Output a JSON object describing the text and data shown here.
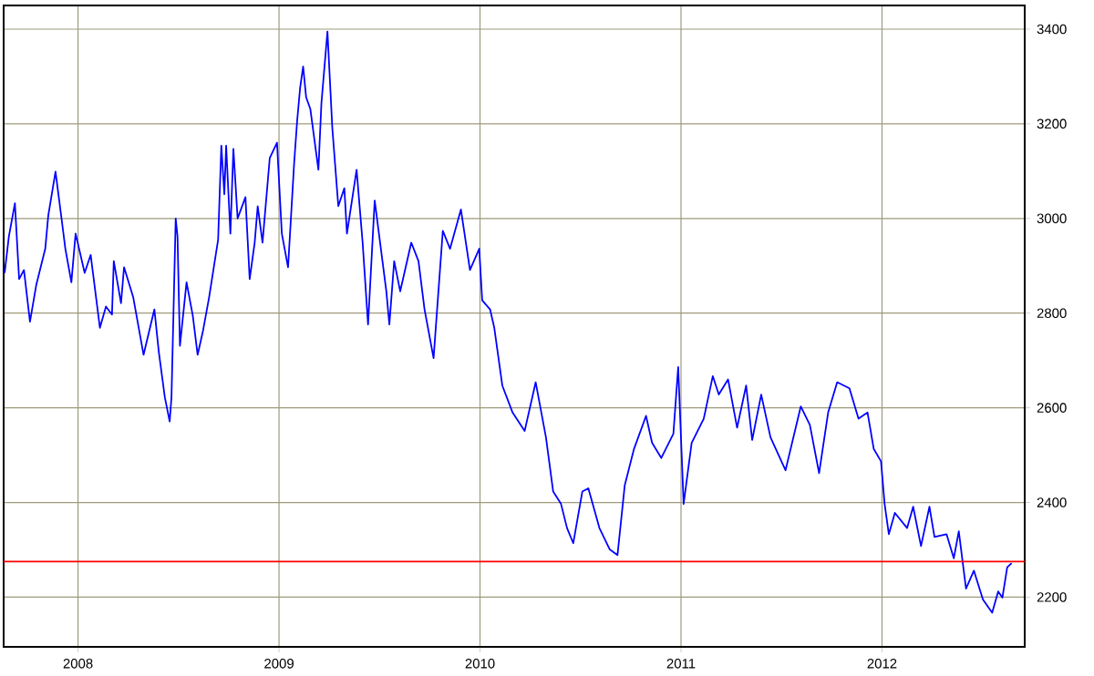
{
  "chart_data": {
    "type": "line",
    "x": [
      2007.635,
      2007.656,
      2007.686,
      2007.707,
      2007.731,
      2007.761,
      2007.792,
      2007.837,
      2007.852,
      2007.888,
      2007.918,
      2007.937,
      2007.967,
      2007.988,
      2008.033,
      2008.063,
      2008.109,
      2008.139,
      2008.169,
      2008.178,
      2008.214,
      2008.229,
      2008.275,
      2008.326,
      2008.38,
      2008.402,
      2008.432,
      2008.456,
      2008.465,
      2008.486,
      2008.495,
      2008.507,
      2008.54,
      2008.571,
      2008.595,
      2008.622,
      2008.652,
      2008.697,
      2008.713,
      2008.728,
      2008.737,
      2008.758,
      2008.773,
      2008.794,
      2008.833,
      2008.854,
      2008.879,
      2008.894,
      2008.918,
      2008.954,
      2008.99,
      2009.014,
      2009.045,
      2009.075,
      2009.09,
      2009.105,
      2009.12,
      2009.135,
      2009.156,
      2009.196,
      2009.211,
      2009.241,
      2009.265,
      2009.295,
      2009.325,
      2009.338,
      2009.386,
      2009.416,
      2009.443,
      2009.476,
      2009.534,
      2009.549,
      2009.573,
      2009.603,
      2009.658,
      2009.694,
      2009.724,
      2009.769,
      2009.815,
      2009.851,
      2009.905,
      2009.95,
      2009.996,
      2010.011,
      2010.05,
      2010.071,
      2010.111,
      2010.162,
      2010.222,
      2010.277,
      2010.328,
      2010.364,
      2010.403,
      2010.433,
      2010.464,
      2010.509,
      2010.539,
      2010.594,
      2010.645,
      2010.684,
      2010.72,
      2010.766,
      2010.826,
      2010.856,
      2010.902,
      2010.962,
      2010.986,
      2011.013,
      2011.053,
      2011.113,
      2011.158,
      2011.188,
      2011.234,
      2011.279,
      2011.324,
      2011.354,
      2011.399,
      2011.445,
      2011.52,
      2011.596,
      2011.641,
      2011.687,
      2011.732,
      2011.777,
      2011.838,
      2011.883,
      2011.928,
      2011.959,
      2011.995,
      2012.013,
      2012.034,
      2012.064,
      2012.125,
      2012.155,
      2012.194,
      2012.236,
      2012.261,
      2012.321,
      2012.357,
      2012.382,
      2012.418,
      2012.457,
      2012.502,
      2012.548,
      2012.578,
      2012.599,
      2012.623,
      2012.645
    ],
    "series": [
      {
        "color": "#0000ff",
        "values": [
          2885,
          2962,
          3032,
          2872,
          2891,
          2782,
          2859,
          2936,
          3006,
          3099,
          3000,
          2936,
          2865,
          2968,
          2885,
          2923,
          2769,
          2814,
          2797,
          2910,
          2821,
          2897,
          2833,
          2712,
          2808,
          2718,
          2622,
          2571,
          2622,
          3000,
          2962,
          2731,
          2865,
          2795,
          2712,
          2763,
          2833,
          2955,
          3154,
          3051,
          3154,
          2968,
          3147,
          3000,
          3045,
          2872,
          2949,
          3026,
          2949,
          3128,
          3160,
          2968,
          2897,
          3115,
          3205,
          3276,
          3321,
          3256,
          3231,
          3103,
          3244,
          3395,
          3192,
          3026,
          3064,
          2968,
          3103,
          2949,
          2776,
          3038,
          2846,
          2776,
          2910,
          2846,
          2949,
          2910,
          2808,
          2705,
          2974,
          2936,
          3019,
          2891,
          2936,
          2827,
          2808,
          2769,
          2647,
          2590,
          2551,
          2654,
          2538,
          2423,
          2397,
          2346,
          2314,
          2423,
          2430,
          2346,
          2301,
          2289,
          2436,
          2513,
          2583,
          2526,
          2494,
          2545,
          2686,
          2397,
          2526,
          2577,
          2667,
          2628,
          2660,
          2558,
          2647,
          2532,
          2628,
          2538,
          2468,
          2603,
          2564,
          2462,
          2590,
          2654,
          2641,
          2577,
          2590,
          2513,
          2487,
          2397,
          2333,
          2378,
          2346,
          2391,
          2308,
          2391,
          2327,
          2333,
          2282,
          2339,
          2218,
          2256,
          2195,
          2167,
          2212,
          2199,
          2263,
          2272
        ]
      }
    ],
    "xlim": [
      2007.63,
      2012.71
    ],
    "ylim": [
      2095,
      3450
    ],
    "xticks": [
      2008,
      2009,
      2010,
      2011,
      2012
    ],
    "yticks": [
      2200,
      2400,
      2600,
      2800,
      3000,
      3200,
      3400
    ],
    "ref_lines": [
      {
        "axis": "y",
        "value": 2275,
        "color": "#ff0000"
      }
    ],
    "grid": true,
    "marker": "none",
    "line_style": "solid"
  }
}
